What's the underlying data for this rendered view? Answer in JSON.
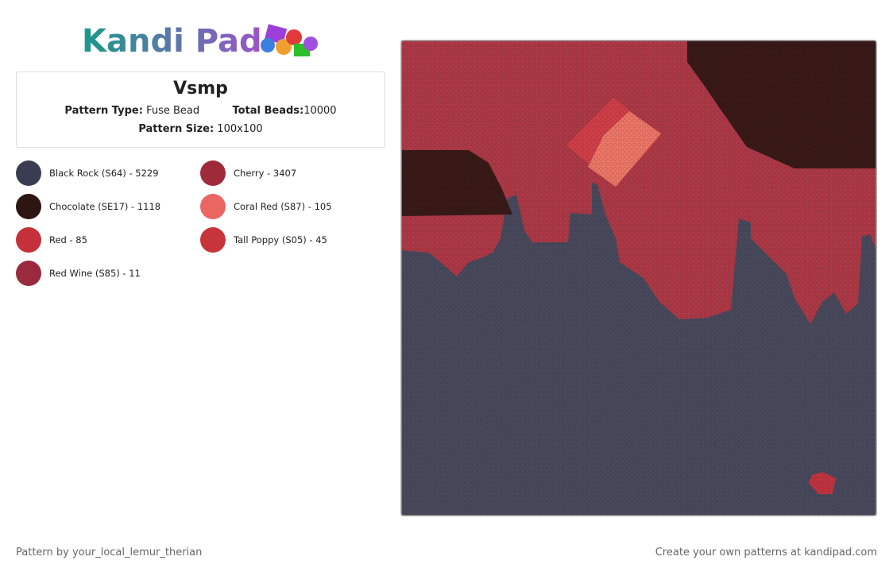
{
  "header": {
    "logo": "Kandi Pad"
  },
  "pattern": {
    "title": "Vsmp",
    "type_label": "Pattern Type:",
    "type": "Fuse Bead",
    "beads_label": "Total Beads:",
    "beads": "10000",
    "size_label": "Pattern Size:",
    "size": "100x100"
  },
  "colors": [
    {
      "label": "Black Rock (S64) - 5229",
      "color": "#3a3d52"
    },
    {
      "label": "Cherry - 3407",
      "color": "#9e2a3a"
    },
    {
      "label": "Chocolate (SE17) - 1118",
      "color": "#2e1512"
    },
    {
      "label": "Coral Red (S87) - 105",
      "color": "#ea6662"
    },
    {
      "label": "Red - 85",
      "color": "#c5313a"
    },
    {
      "label": "Tall Poppy (S05) - 45",
      "color": "#c7343a"
    },
    {
      "label": "Red Wine (S85) - 11",
      "color": "#9a2a3e"
    }
  ],
  "footer": {
    "credit": "Pattern by your_local_lemur_therian",
    "promo": "Create your own patterns at kandipad.com"
  }
}
